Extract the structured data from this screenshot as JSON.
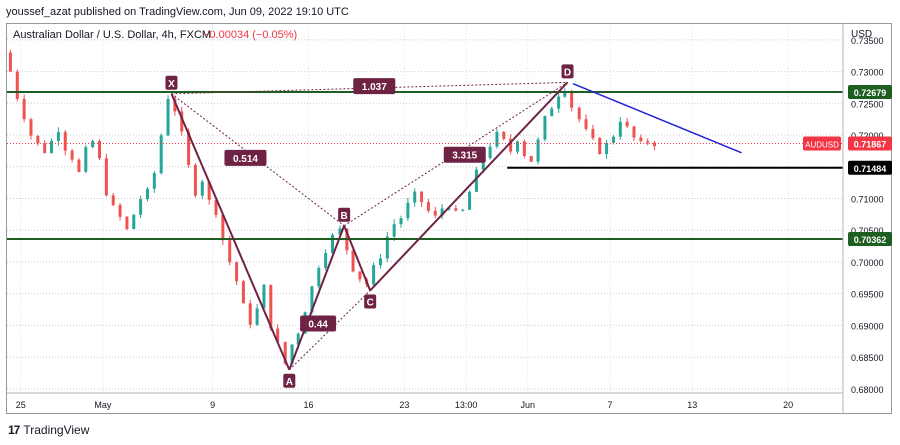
{
  "header": {
    "publisher": "youssef_azat published on TradingView.com, Jun 09, 2022 19:10 UTC"
  },
  "chart_data": {
    "type": "candlestick",
    "title": "Australian Dollar / U.S. Dollar, 4h, FXCM",
    "change": "−0.00034 (−0.05%)",
    "currency": "USD",
    "symbol": "AUDUSD",
    "ylim": [
      0.6795,
      0.7375
    ],
    "yticks": [
      "0.73500",
      "0.73000",
      "0.72500",
      "0.72000",
      "0.71500",
      "0.71000",
      "0.70500",
      "0.70000",
      "0.69500",
      "0.69000",
      "0.68500",
      "0.68000"
    ],
    "xticks": [
      {
        "label": "25",
        "day": -6
      },
      {
        "label": "May",
        "day": 0
      },
      {
        "label": "9",
        "day": 8
      },
      {
        "label": "16",
        "day": 15
      },
      {
        "label": "23",
        "day": 22
      },
      {
        "label": "13:00",
        "day": 26.5
      },
      {
        "label": "Jun",
        "day": 31
      },
      {
        "label": "7",
        "day": 37
      },
      {
        "label": "13",
        "day": 43
      },
      {
        "label": "20",
        "day": 50
      }
    ],
    "xlim": [
      -7,
      54
    ],
    "price_levels": [
      {
        "value": "0.72679",
        "color": "#1e5e20"
      },
      {
        "value": "0.70362",
        "color": "#1e5e20"
      },
      {
        "value": "0.71484",
        "color": "#000000"
      }
    ],
    "current_price": {
      "label": "AUDUSD",
      "value": "0.71867"
    },
    "harmonic_points": [
      {
        "label": "X",
        "day": 5,
        "price": 0.7265
      },
      {
        "label": "A",
        "day": 13.6,
        "price": 0.683
      },
      {
        "label": "B",
        "day": 17.6,
        "price": 0.7057
      },
      {
        "label": "C",
        "day": 19.5,
        "price": 0.6955
      },
      {
        "label": "D",
        "day": 33.9,
        "price": 0.7283
      }
    ],
    "ratios": [
      {
        "label": "1.037",
        "day": 19.8,
        "price": 0.7277
      },
      {
        "label": "0.514",
        "day": 10.4,
        "price": 0.7164
      },
      {
        "label": "0.44",
        "day": 15.7,
        "price": 0.6903
      },
      {
        "label": "3.315",
        "day": 26.4,
        "price": 0.7169
      }
    ],
    "trendline": [
      {
        "day": 34.3,
        "price": 0.7281
      },
      {
        "day": 46.6,
        "price": 0.7172
      }
    ],
    "support_segment": [
      {
        "day": 29.5,
        "price": 0.71484
      },
      {
        "day": 54,
        "price": 0.71484
      }
    ],
    "path_close": [
      [
        -7,
        0.733
      ],
      [
        -6.5,
        0.73
      ],
      [
        -6,
        0.726
      ],
      [
        -5.5,
        0.723
      ],
      [
        -5,
        0.72
      ],
      [
        -4.5,
        0.7185
      ],
      [
        -4,
        0.7175
      ],
      [
        -3.5,
        0.719
      ],
      [
        -3,
        0.721
      ],
      [
        -2.5,
        0.718
      ],
      [
        -2,
        0.7165
      ],
      [
        -1.5,
        0.714
      ],
      [
        -1,
        0.7175
      ],
      [
        -0.5,
        0.719
      ],
      [
        0,
        0.716
      ],
      [
        0.5,
        0.711
      ],
      [
        1,
        0.7085
      ],
      [
        1.5,
        0.707
      ],
      [
        2,
        0.705
      ],
      [
        2.5,
        0.7075
      ],
      [
        3,
        0.71
      ],
      [
        3.5,
        0.711
      ],
      [
        4,
        0.714
      ],
      [
        4.5,
        0.72
      ],
      [
        5,
        0.726
      ],
      [
        5.5,
        0.724
      ],
      [
        6,
        0.72
      ],
      [
        6.5,
        0.715
      ],
      [
        7,
        0.711
      ],
      [
        7.5,
        0.713
      ],
      [
        8,
        0.7095
      ],
      [
        8.5,
        0.708
      ],
      [
        9,
        0.7035
      ],
      [
        9.5,
        0.7
      ],
      [
        10,
        0.697
      ],
      [
        10.5,
        0.693
      ],
      [
        11,
        0.6905
      ],
      [
        11.5,
        0.6925
      ],
      [
        12,
        0.696
      ],
      [
        12.5,
        0.69
      ],
      [
        13,
        0.687
      ],
      [
        13.6,
        0.684
      ],
      [
        14,
        0.687
      ],
      [
        14.5,
        0.689
      ],
      [
        15,
        0.6925
      ],
      [
        15.5,
        0.696
      ],
      [
        16,
        0.6995
      ],
      [
        16.5,
        0.702
      ],
      [
        17,
        0.704
      ],
      [
        17.6,
        0.705
      ],
      [
        18,
        0.702
      ],
      [
        18.5,
        0.699
      ],
      [
        19,
        0.6975
      ],
      [
        19.5,
        0.6965
      ],
      [
        20,
        0.699
      ],
      [
        20.5,
        0.701
      ],
      [
        21,
        0.704
      ],
      [
        21.5,
        0.706
      ],
      [
        22,
        0.707
      ],
      [
        22.5,
        0.709
      ],
      [
        23,
        0.7105
      ],
      [
        23.5,
        0.7095
      ],
      [
        24,
        0.708
      ],
      [
        24.5,
        0.707
      ],
      [
        25,
        0.7085
      ],
      [
        25.5,
        0.709
      ],
      [
        26,
        0.7075
      ],
      [
        26.5,
        0.708
      ],
      [
        27,
        0.711
      ],
      [
        27.5,
        0.714
      ],
      [
        28,
        0.7165
      ],
      [
        28.5,
        0.7185
      ],
      [
        29,
        0.72
      ],
      [
        29.5,
        0.719
      ],
      [
        30,
        0.7175
      ],
      [
        30.5,
        0.7195
      ],
      [
        31,
        0.717
      ],
      [
        31.5,
        0.716
      ],
      [
        32,
        0.719
      ],
      [
        32.5,
        0.7225
      ],
      [
        33,
        0.7245
      ],
      [
        33.5,
        0.7265
      ],
      [
        33.9,
        0.7275
      ],
      [
        34.5,
        0.7245
      ],
      [
        35,
        0.7225
      ],
      [
        35.5,
        0.7205
      ],
      [
        36,
        0.719
      ],
      [
        36.5,
        0.7175
      ],
      [
        37,
        0.7185
      ],
      [
        37.5,
        0.72
      ],
      [
        38,
        0.7225
      ],
      [
        38.5,
        0.721
      ],
      [
        39,
        0.7195
      ],
      [
        39.5,
        0.7185
      ],
      [
        40,
        0.719
      ],
      [
        40.5,
        0.7187
      ]
    ]
  },
  "footer": {
    "brand": "TradingView"
  }
}
